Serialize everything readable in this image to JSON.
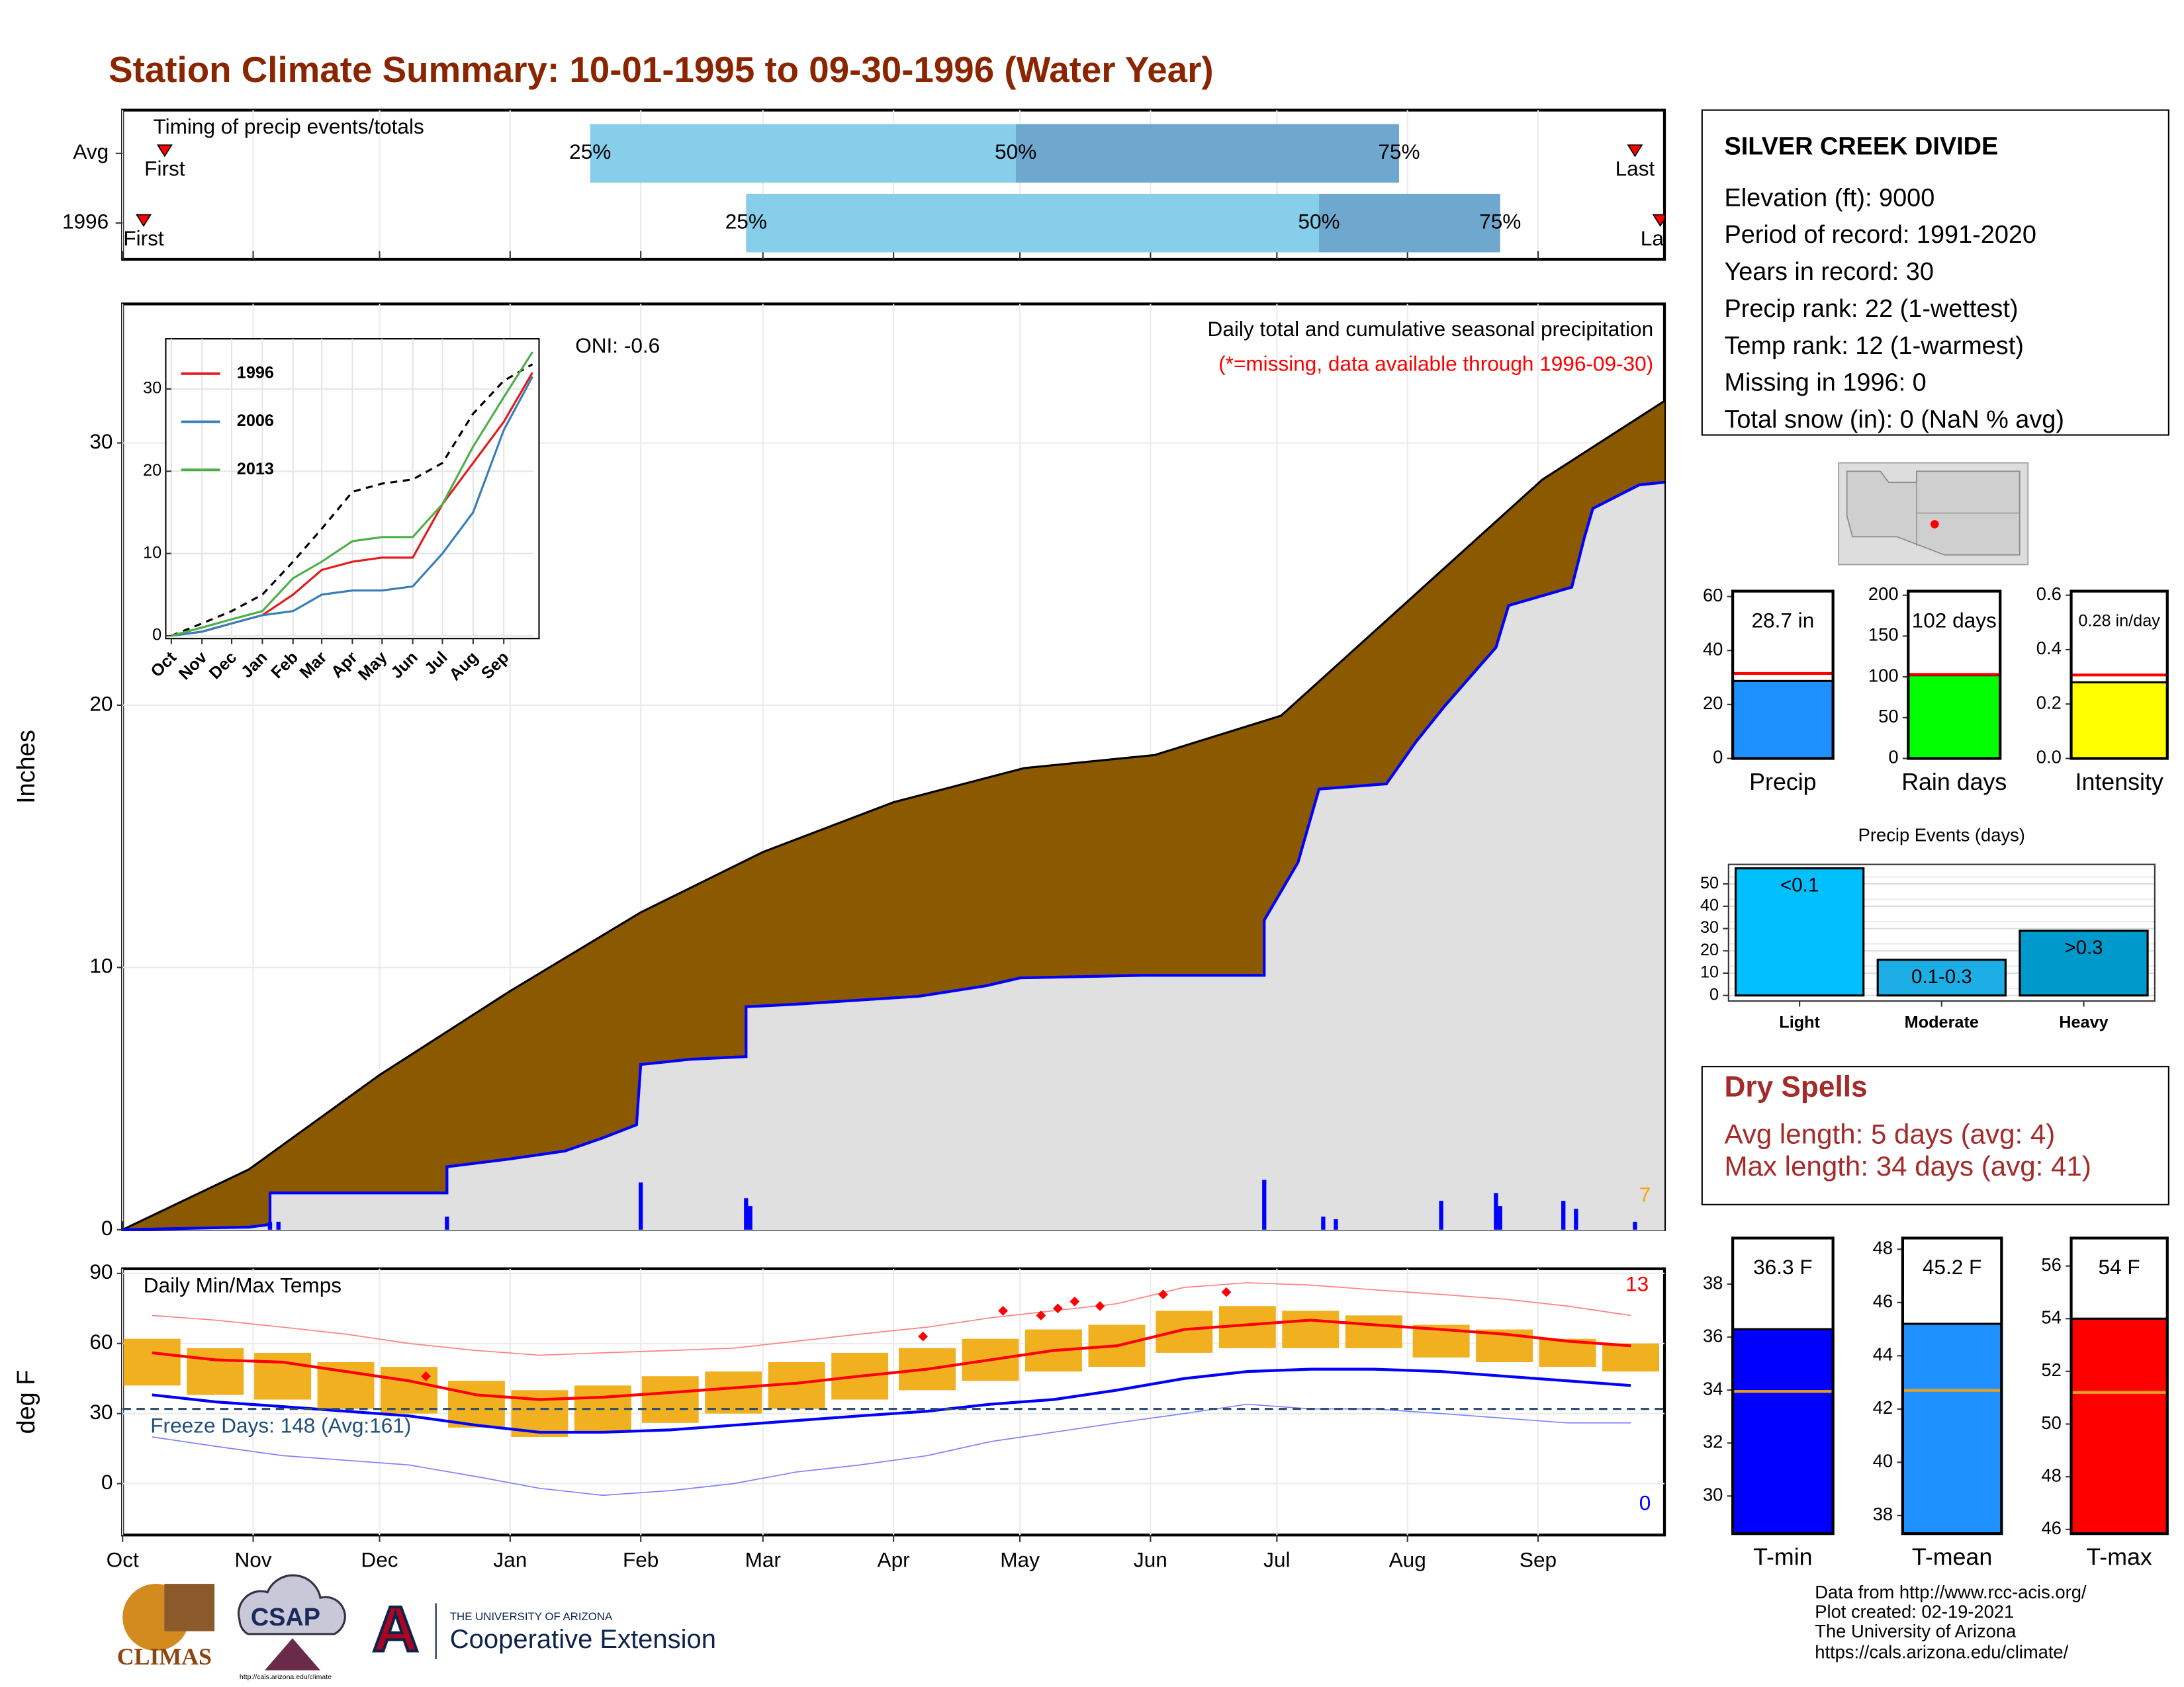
{
  "title": "Station Climate Summary: 10-01-1995 to 09-30-1996 (Water Year)",
  "station": {
    "name": "SILVER CREEK DIVIDE",
    "lines": [
      "Elevation (ft): 9000",
      "Period of record: 1991-2020",
      "Years in record: 30",
      "Precip rank: 22 (1-wettest)",
      "Temp rank: 12 (1-warmest)",
      "Missing in 1996: 0",
      "Total snow (in): 0 (NaN % avg)"
    ]
  },
  "dry_spells": {
    "title": "Dry Spells",
    "lines": [
      "Avg length: 5 days (avg: 4)",
      "Max length: 34 days (avg: 41)"
    ]
  },
  "credits": [
    "Data from http://www.rcc-acis.org/",
    "Plot created: 02-19-2021",
    "The University of Arizona",
    "https://cals.arizona.edu/climate/"
  ],
  "logos": [
    "CLIMAS",
    "CSAP",
    "http://cals.arizona.edu/climate",
    "THE UNIVERSITY OF ARIZONA",
    "Cooperative Extension"
  ],
  "chart_data": [
    {
      "type": "timing",
      "title": "Timing of precip events/totals",
      "labels": [
        "First",
        "25%",
        "50%",
        "75%",
        "Last"
      ],
      "rows": [
        {
          "name": "Avg",
          "values": [
            10,
            111,
            212,
            303,
            359
          ]
        },
        {
          "name": "1996",
          "values": [
            5,
            148,
            284,
            327,
            365
          ]
        }
      ],
      "colors": [
        "#87ceeb",
        "#6fa8cf"
      ],
      "marker_color": "#ff0000",
      "xlim": [
        0,
        366
      ],
      "xticks": [
        0,
        31,
        61,
        92,
        123,
        152,
        183,
        213,
        244,
        274,
        305,
        336
      ],
      "grid": true
    },
    {
      "type": "area",
      "title": "Daily total and cumulative seasonal precipitation",
      "subtitle": "(*=missing, data available through 1996-09-30)",
      "annotation": "ONI: -0.6",
      "ylabel": "Inches",
      "count": 7,
      "xlim": [
        0,
        366
      ],
      "xticks": [
        0,
        31,
        61,
        92,
        123,
        152,
        183,
        213,
        244,
        274,
        305,
        336
      ],
      "ylim": [
        0,
        35.3
      ],
      "yticks": [
        0,
        10,
        20,
        30
      ],
      "grid": true,
      "fill_colors": [
        "#8b5a00",
        "#e0e0e0"
      ],
      "series": [
        {
          "color": "#000000",
          "x": [
            0,
            30,
            61,
            92,
            123,
            152,
            183,
            214,
            245,
            275,
            306,
            337,
            366
          ],
          "values": [
            0,
            2.3,
            5.9,
            9.1,
            12.1,
            14.4,
            16.3,
            17.6,
            18.1,
            19.6,
            24.1,
            28.6,
            31.6
          ]
        },
        {
          "color": "#0000ff",
          "x": [
            0,
            30,
            35,
            35,
            77,
            77,
            92,
            105,
            114,
            122,
            123,
            135,
            148,
            148,
            160,
            189,
            205,
            213,
            242,
            271,
            271,
            279,
            284,
            300,
            307,
            314,
            326,
            329,
            344,
            347,
            349,
            360,
            366
          ],
          "values": [
            0,
            0.1,
            0.2,
            1.4,
            1.4,
            2.4,
            2.7,
            3.0,
            3.5,
            4.0,
            6.3,
            6.5,
            6.6,
            8.5,
            8.6,
            8.9,
            9.3,
            9.6,
            9.7,
            9.7,
            11.8,
            14.0,
            16.8,
            17.0,
            18.6,
            20.0,
            22.2,
            23.8,
            24.5,
            26.4,
            27.5,
            28.4,
            28.5
          ]
        }
      ],
      "bars": {
        "color": "#0000ff",
        "x": [
          35,
          37,
          77,
          123,
          148,
          149,
          271,
          285,
          288,
          313,
          326,
          327,
          342,
          345,
          359
        ],
        "values": [
          0.3,
          0.3,
          0.5,
          1.8,
          1.2,
          0.9,
          1.9,
          0.5,
          0.4,
          1.1,
          1.4,
          0.9,
          1.1,
          0.8,
          0.3
        ]
      }
    },
    {
      "type": "line",
      "xlim": [
        0,
        366
      ],
      "ylim": [
        0,
        36.1
      ],
      "yticks": [
        0,
        10,
        20,
        30
      ],
      "grid": true,
      "xticks": [
        {
          "value": 0,
          "label": "Oct"
        },
        {
          "value": 31,
          "label": "Nov"
        },
        {
          "value": 61,
          "label": "Dec"
        },
        {
          "value": 92,
          "label": "Jan"
        },
        {
          "value": 123,
          "label": "Feb"
        },
        {
          "value": 152,
          "label": "Mar"
        },
        {
          "value": 183,
          "label": "Apr"
        },
        {
          "value": 213,
          "label": "May"
        },
        {
          "value": 244,
          "label": "Jun"
        },
        {
          "value": 274,
          "label": "Jul"
        },
        {
          "value": 305,
          "label": "Aug"
        },
        {
          "value": 336,
          "label": "Sep"
        }
      ],
      "x": [
        0,
        31,
        61,
        92,
        123,
        152,
        183,
        213,
        244,
        274,
        305,
        336,
        365
      ],
      "average": {
        "color": "#000000",
        "values": [
          0,
          1.5,
          3,
          5,
          9,
          13,
          17.5,
          18.5,
          19,
          21,
          27,
          31,
          33
        ]
      },
      "series": [
        {
          "name": "1996",
          "color": "#e41a1c",
          "values": [
            0,
            0.5,
            1.5,
            2.5,
            5,
            8,
            9,
            9.5,
            9.5,
            16,
            21,
            26,
            32
          ]
        },
        {
          "name": "2006",
          "color": "#377eb8",
          "values": [
            0,
            0.5,
            1.5,
            2.5,
            3,
            5,
            5.5,
            5.5,
            6,
            10,
            15,
            25,
            31.5
          ]
        },
        {
          "name": "2013",
          "color": "#4daf4a",
          "values": [
            0,
            1,
            2,
            3,
            7,
            9,
            11.5,
            12,
            12,
            16,
            23,
            29,
            34.5
          ]
        }
      ]
    },
    {
      "type": "temperature",
      "title": "Daily Min/Max Temps",
      "note": "Freeze Days: 148 (Avg:161)",
      "ylabel": "deg F",
      "max_count": 13,
      "min_count": 0,
      "xlim": [
        0,
        366
      ],
      "ylim": [
        -22,
        92
      ],
      "yticks": [
        0,
        30,
        60,
        90
      ],
      "grid": true,
      "freeze": 32,
      "freeze_color": "#2f4f6f",
      "xticks": [
        {
          "value": 0,
          "label": "Oct"
        },
        {
          "value": 31,
          "label": "Nov"
        },
        {
          "value": 61,
          "label": "Dec"
        },
        {
          "value": 92,
          "label": "Jan"
        },
        {
          "value": 123,
          "label": "Feb"
        },
        {
          "value": 152,
          "label": "Mar"
        },
        {
          "value": 183,
          "label": "Apr"
        },
        {
          "value": 213,
          "label": "May"
        },
        {
          "value": 244,
          "label": "Jun"
        },
        {
          "value": 274,
          "label": "Jul"
        },
        {
          "value": 305,
          "label": "Aug"
        },
        {
          "value": 336,
          "label": "Sep"
        }
      ],
      "x": [
        7,
        22,
        38,
        53,
        68,
        84,
        99,
        114,
        130,
        145,
        160,
        175,
        191,
        206,
        221,
        236,
        252,
        267,
        282,
        297,
        313,
        328,
        343,
        358
      ],
      "range": {
        "color": "#f0b020",
        "low": [
          42,
          38,
          36,
          32,
          30,
          24,
          20,
          22,
          26,
          30,
          32,
          36,
          40,
          44,
          48,
          50,
          56,
          58,
          58,
          58,
          54,
          52,
          50,
          48
        ],
        "high": [
          62,
          58,
          56,
          52,
          50,
          44,
          40,
          42,
          46,
          48,
          52,
          56,
          58,
          62,
          66,
          68,
          74,
          76,
          74,
          72,
          68,
          66,
          62,
          60
        ]
      },
      "series": [
        {
          "color": "#ff8080",
          "width": 0.8,
          "values": [
            72,
            70,
            67,
            64,
            60,
            57,
            55,
            56,
            57,
            58,
            61,
            64,
            67,
            71,
            74,
            77,
            84,
            86,
            85,
            83,
            81,
            79,
            76,
            72
          ]
        },
        {
          "color": "#8080ff",
          "width": 0.8,
          "values": [
            20,
            16,
            12,
            10,
            8,
            3,
            -2,
            -5,
            -3,
            0,
            5,
            8,
            12,
            18,
            22,
            26,
            30,
            34,
            32,
            32,
            30,
            28,
            26,
            26
          ]
        },
        {
          "color": "#ff0000",
          "width": 2,
          "values": [
            56,
            53,
            52,
            48,
            44,
            38,
            36,
            37,
            39,
            41,
            43,
            46,
            49,
            53,
            57,
            59,
            66,
            68,
            70,
            68,
            66,
            64,
            61,
            59
          ]
        },
        {
          "color": "#0000ff",
          "width": 2,
          "values": [
            38,
            35,
            33,
            31,
            29,
            25,
            22,
            22,
            23,
            25,
            27,
            29,
            31,
            34,
            36,
            40,
            45,
            48,
            49,
            49,
            48,
            46,
            44,
            42
          ]
        }
      ],
      "records": {
        "color": "#ff0000",
        "x": [
          72,
          190,
          209,
          218,
          222,
          226,
          232,
          247,
          262
        ],
        "values": [
          46,
          63,
          74,
          72,
          75,
          78,
          76,
          81,
          82
        ]
      }
    },
    {
      "type": "gauge",
      "categories": [
        "Precip"
      ],
      "values": [
        28.7
      ],
      "value_labels": [
        "28.7 in"
      ],
      "color": "#1e90ff",
      "reference": 31.5,
      "reference_color": "#ff0000",
      "ylim": [
        0,
        62
      ],
      "yticks": [
        0,
        20,
        40,
        60
      ]
    },
    {
      "type": "gauge",
      "categories": [
        "Rain days"
      ],
      "values": [
        102
      ],
      "value_labels": [
        "102 days"
      ],
      "color": "#00ff00",
      "reference": 103,
      "reference_color": "#ff0000",
      "ylim": [
        0,
        205
      ],
      "yticks": [
        0,
        50,
        100,
        150,
        200
      ]
    },
    {
      "type": "gauge",
      "categories": [
        "Intensity"
      ],
      "values": [
        0.28
      ],
      "value_labels": [
        "0.28 in/day"
      ],
      "color": "#ffff00",
      "reference": 0.307,
      "reference_color": "#ff0000",
      "ylim": [
        0,
        0.615
      ],
      "yticks": [
        {
          "value": 0,
          "label": "0.0"
        },
        0.2,
        0.4,
        0.6
      ]
    },
    {
      "type": "bar",
      "title": "Precip Events (days)",
      "categories": [
        "Light",
        "Moderate",
        "Heavy"
      ],
      "values": [
        57,
        16,
        29
      ],
      "bar_labels": [
        "<0.1",
        "0.1-0.3",
        ">0.3"
      ],
      "colors": [
        "#00bfff",
        "#1eaee6",
        "#0099cc"
      ],
      "ylim": [
        -2.5,
        58.75
      ],
      "yticks": [
        0,
        10,
        20,
        30,
        40,
        50
      ],
      "grid": true
    },
    {
      "type": "gauge",
      "categories": [
        "T-min"
      ],
      "values": [
        36.3
      ],
      "value_labels": [
        "36.3 F"
      ],
      "color": "#0000ff",
      "reference": 33.95,
      "reference_color": "#e6a020",
      "ylim": [
        28.58,
        39.74
      ],
      "yticks": [
        30,
        32,
        34,
        36,
        38
      ]
    },
    {
      "type": "gauge",
      "categories": [
        "T-mean"
      ],
      "values": [
        45.2
      ],
      "value_labels": [
        "45.2 F"
      ],
      "color": "#1e90ff",
      "reference": 42.7,
      "reference_color": "#e6a020",
      "ylim": [
        37.32,
        48.42
      ],
      "yticks": [
        38,
        40,
        42,
        44,
        46,
        48
      ]
    },
    {
      "type": "gauge",
      "categories": [
        "T-max"
      ],
      "values": [
        54
      ],
      "value_labels": [
        "54 F"
      ],
      "color": "#ff0000",
      "reference": 51.2,
      "reference_color": "#e6a020",
      "ylim": [
        45.84,
        57.06
      ],
      "yticks": [
        46,
        48,
        50,
        52,
        54,
        56
      ]
    }
  ]
}
